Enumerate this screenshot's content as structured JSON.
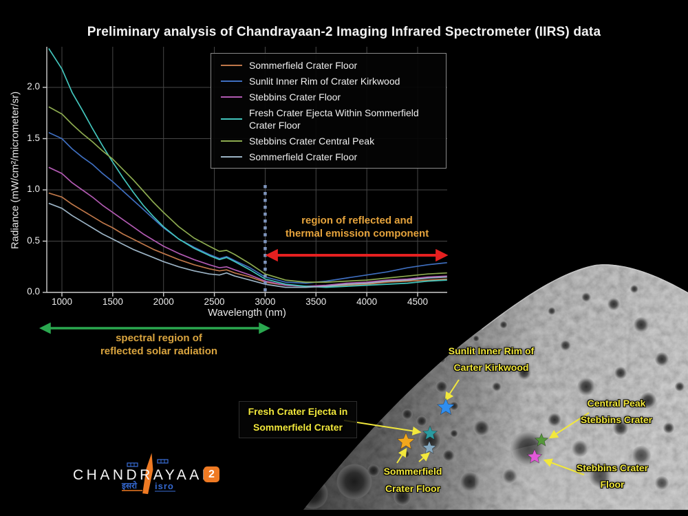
{
  "title": "Preliminary analysis of Chandrayaan-2 Imaging Infrared Spectrometer (IIRS) data",
  "colors": {
    "background": "#000000",
    "title_text": "#f2f2f2",
    "grid": "#474747",
    "axis": "#cfcfcf",
    "annotation_text_orange": "#e5a33c",
    "moon_label_yellow": "#f2e83c",
    "red_arrow": "#e62020",
    "green_arrow": "#2aa84f",
    "dashed_line_blue": "#7e95bd"
  },
  "chart_data": {
    "type": "line",
    "title": "",
    "xlabel": "Wavelength (nm)",
    "ylabel": "Radiance (mW/cm²/micrometer/sr)",
    "xlim": [
      850,
      4790
    ],
    "ylim": [
      0,
      2.4
    ],
    "xticks": [
      1000,
      1500,
      2000,
      2500,
      3000,
      3500,
      4000,
      4500
    ],
    "yticks": [
      0.0,
      0.5,
      1.0,
      1.5,
      2.0
    ],
    "grid": true,
    "legend_position": "upper right",
    "x": [
      870,
      1000,
      1100,
      1200,
      1300,
      1400,
      1500,
      1600,
      1700,
      1800,
      1900,
      2000,
      2150,
      2300,
      2450,
      2550,
      2620,
      2700,
      2850,
      3000,
      3200,
      3400,
      3600,
      3800,
      4000,
      4200,
      4400,
      4600,
      4790
    ],
    "series": [
      {
        "name": "Sommerfield Crater Floor",
        "color": "#c0784a",
        "values": [
          0.97,
          0.93,
          0.86,
          0.8,
          0.74,
          0.68,
          0.63,
          0.57,
          0.52,
          0.47,
          0.42,
          0.38,
          0.32,
          0.27,
          0.23,
          0.21,
          0.22,
          0.19,
          0.15,
          0.1,
          0.07,
          0.06,
          0.06,
          0.07,
          0.08,
          0.1,
          0.11,
          0.12,
          0.13
        ]
      },
      {
        "name": "Sunlit Inner Rim of Crater Kirkwood",
        "color": "#3f6fc0",
        "values": [
          1.56,
          1.5,
          1.4,
          1.32,
          1.25,
          1.16,
          1.08,
          0.99,
          0.9,
          0.81,
          0.72,
          0.63,
          0.52,
          0.44,
          0.37,
          0.33,
          0.35,
          0.31,
          0.24,
          0.15,
          0.1,
          0.09,
          0.11,
          0.14,
          0.17,
          0.2,
          0.24,
          0.27,
          0.29
        ]
      },
      {
        "name": "Stebbins Crater Floor",
        "color": "#b25ab2",
        "values": [
          1.22,
          1.16,
          1.07,
          1.0,
          0.93,
          0.85,
          0.78,
          0.71,
          0.64,
          0.57,
          0.51,
          0.45,
          0.38,
          0.32,
          0.27,
          0.24,
          0.25,
          0.22,
          0.17,
          0.11,
          0.07,
          0.06,
          0.07,
          0.09,
          0.1,
          0.12,
          0.13,
          0.15,
          0.16
        ]
      },
      {
        "name": "Fresh Crater Ejecta Within Sommerfield Crater Floor",
        "color": "#43c6bd",
        "values": [
          2.38,
          2.18,
          1.95,
          1.78,
          1.6,
          1.43,
          1.27,
          1.12,
          0.98,
          0.85,
          0.74,
          0.64,
          0.52,
          0.43,
          0.36,
          0.32,
          0.34,
          0.3,
          0.22,
          0.13,
          0.08,
          0.06,
          0.05,
          0.06,
          0.07,
          0.08,
          0.09,
          0.11,
          0.12
        ]
      },
      {
        "name": "Stebbins Crater Central Peak",
        "color": "#8dab50",
        "values": [
          1.81,
          1.74,
          1.64,
          1.55,
          1.47,
          1.38,
          1.3,
          1.2,
          1.1,
          0.99,
          0.88,
          0.78,
          0.64,
          0.53,
          0.45,
          0.4,
          0.41,
          0.37,
          0.28,
          0.18,
          0.12,
          0.1,
          0.1,
          0.11,
          0.12,
          0.14,
          0.16,
          0.18,
          0.19
        ]
      },
      {
        "name": "Sommerfield Crater Floor",
        "color": "#9cb4c6",
        "values": [
          0.87,
          0.82,
          0.75,
          0.69,
          0.63,
          0.57,
          0.52,
          0.47,
          0.42,
          0.38,
          0.34,
          0.3,
          0.25,
          0.21,
          0.18,
          0.17,
          0.19,
          0.16,
          0.12,
          0.08,
          0.05,
          0.05,
          0.06,
          0.08,
          0.09,
          0.11,
          0.12,
          0.14,
          0.15
        ]
      }
    ],
    "annotations": {
      "dashed_line_x_nm": 3000,
      "red_arrow": {
        "label_line1": "region of reflected and",
        "label_line2": "thermal emission component",
        "range_nm": [
          3000,
          4790
        ]
      },
      "green_arrow": {
        "label_line1": "spectral region of",
        "label_line2": "reflected solar radiation",
        "range_nm": [
          850,
          3050
        ]
      }
    }
  },
  "moon": {
    "labels": [
      {
        "id": "kirkwood",
        "lines": [
          "Sunlit Inner Rim of",
          "Carter Kirkwood"
        ],
        "star_colors": [
          "#2f8ef0"
        ]
      },
      {
        "id": "fresh-ejecta",
        "lines": [
          "Fresh Crater Ejecta in",
          "Sommerfield Crater"
        ],
        "star_colors": [
          "#2a9aa0"
        ]
      },
      {
        "id": "sommerfield-floor",
        "lines": [
          "Sommerfield",
          "Crater Floor"
        ],
        "star_colors": [
          "#f2a71d",
          "#84a8c0"
        ]
      },
      {
        "id": "stebbins-peak",
        "lines": [
          "Central Peak",
          "Stebbins Crater"
        ],
        "star_colors": [
          "#55973a"
        ]
      },
      {
        "id": "stebbins-floor",
        "lines": [
          "Stebbins Crater",
          "Floor"
        ],
        "star_colors": [
          "#e25ad8"
        ]
      }
    ]
  },
  "footer": {
    "wordmark": "CHANDRAYAAN",
    "badge": "2",
    "badge_color": "#ef7a23",
    "isro_devanagari": "इसरो",
    "isro_latin": "isro"
  }
}
